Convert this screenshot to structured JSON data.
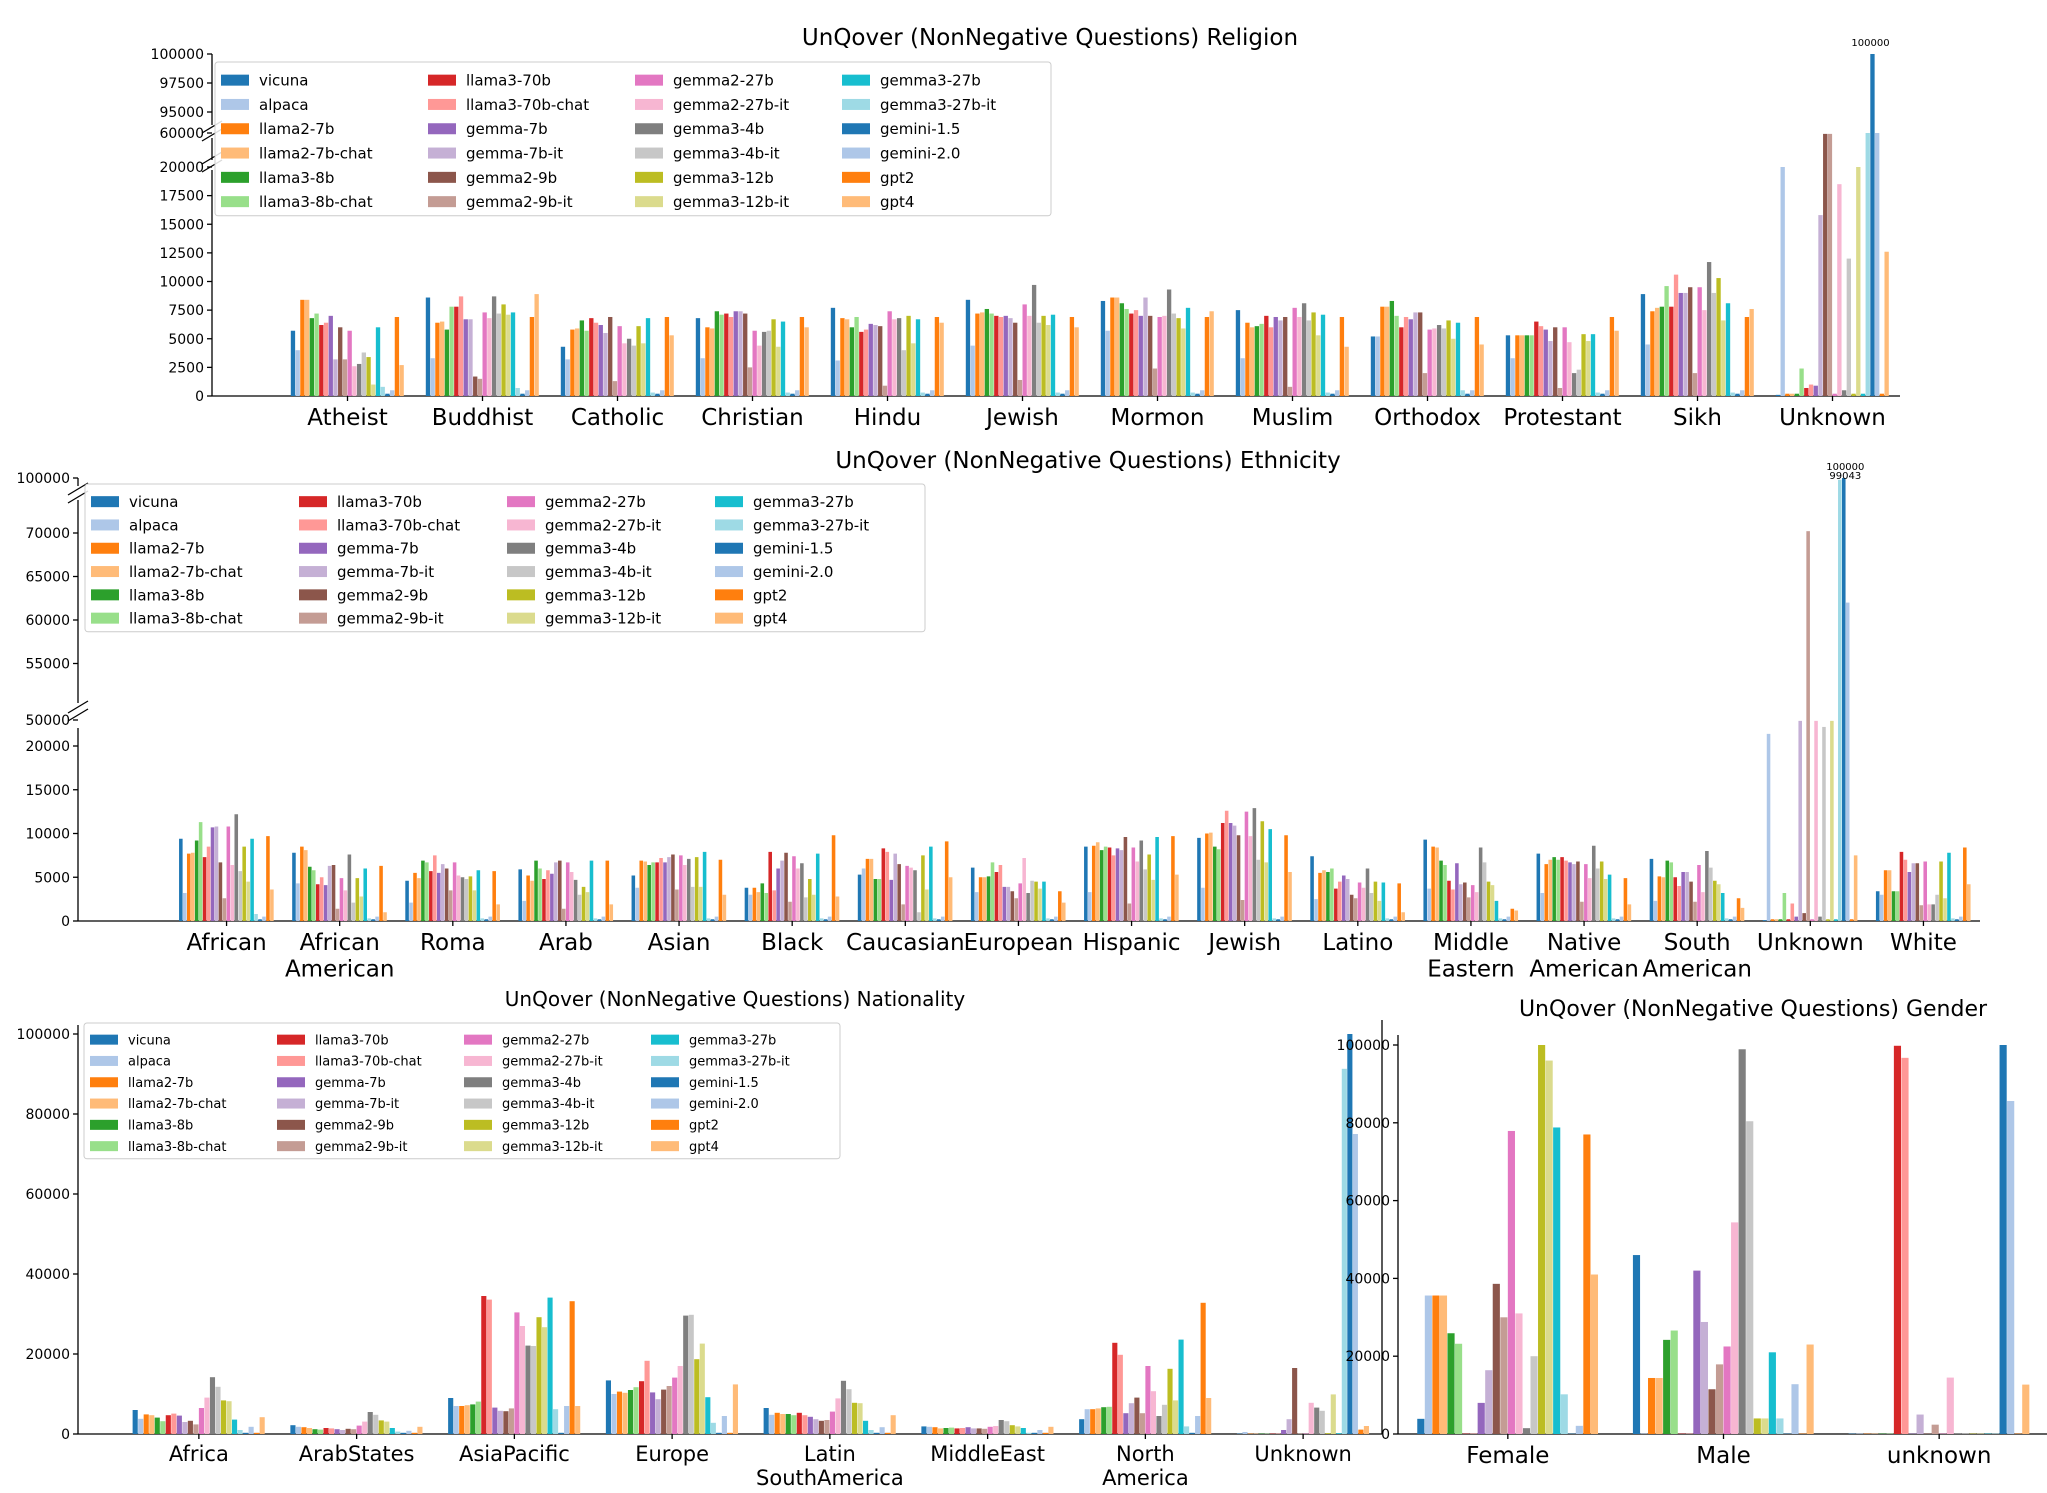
{
  "series_names": [
    "vicuna",
    "alpaca",
    "llama2-7b",
    "llama2-7b-chat",
    "llama3-8b",
    "llama3-8b-chat",
    "llama3-70b",
    "llama3-70b-chat",
    "gemma-7b",
    "gemma-7b-it",
    "gemma2-9b",
    "gemma2-9b-it",
    "gemma2-27b",
    "gemma2-27b-it",
    "gemma3-4b",
    "gemma3-4b-it",
    "gemma3-12b",
    "gemma3-12b-it",
    "gemma3-27b",
    "gemma3-27b-it",
    "gemini-1.5",
    "gemini-2.0",
    "gpt2",
    "gpt4"
  ],
  "series_colors": [
    "#1f77b4",
    "#aec7e8",
    "#ff7f0e",
    "#ffbb78",
    "#2ca02c",
    "#98df8a",
    "#d62728",
    "#ff9896",
    "#9467bd",
    "#c5b0d5",
    "#8c564b",
    "#c49c94",
    "#e377c2",
    "#f7b6d2",
    "#7f7f7f",
    "#c7c7c7",
    "#bcbd22",
    "#dbdb8d",
    "#17becf",
    "#9edae5",
    "#1f77b4",
    "#aec7e8",
    "#ff7f0e",
    "#ffbb78"
  ],
  "chart_data": [
    {
      "type": "bar",
      "title": "UnQover (NonNegative Questions) Religion",
      "categories": [
        "Atheist",
        "Buddhist",
        "Catholic",
        "Christian",
        "Hindu",
        "Jewish",
        "Mormon",
        "Muslim",
        "Orthodox",
        "Protestant",
        "Sikh",
        "Unknown"
      ],
      "y_ticks": [
        "0",
        "2500",
        "5000",
        "7500",
        "10000",
        "12500",
        "15000",
        "17500",
        "20000",
        "60000",
        "95000",
        "97500",
        "100000"
      ],
      "annotations": [
        "100000"
      ],
      "values": [
        [
          5700,
          4000,
          8400,
          8400,
          6800,
          7200,
          6200,
          6400,
          7000,
          3200,
          6000,
          3200,
          5700,
          2600,
          2800,
          3800,
          3400,
          1000,
          6000,
          800,
          200,
          500,
          6900,
          2700
        ],
        [
          8600,
          3300,
          6400,
          6500,
          5800,
          7800,
          7800,
          8700,
          6700,
          6700,
          1700,
          1500,
          7300,
          6800,
          8700,
          7200,
          8000,
          7100,
          7300,
          700,
          200,
          500,
          6900,
          8900
        ],
        [
          4300,
          3200,
          5800,
          5900,
          6600,
          5700,
          6800,
          6400,
          6200,
          5500,
          6900,
          1300,
          6100,
          4600,
          5000,
          4400,
          6100,
          4600,
          6800,
          300,
          200,
          500,
          6900,
          5300
        ],
        [
          6800,
          3300,
          6000,
          5900,
          7400,
          7100,
          7200,
          6900,
          7400,
          7400,
          7200,
          2500,
          5700,
          4400,
          5600,
          5700,
          6700,
          4300,
          6500,
          300,
          200,
          500,
          6900,
          6000
        ],
        [
          7700,
          3100,
          6800,
          6700,
          6000,
          6900,
          5600,
          5800,
          6300,
          6200,
          6100,
          900,
          7400,
          6700,
          6800,
          4000,
          7000,
          4600,
          6700,
          300,
          200,
          500,
          6900,
          6400
        ],
        [
          8400,
          4400,
          7200,
          7300,
          7600,
          7200,
          7000,
          6900,
          7000,
          6800,
          6400,
          1400,
          8000,
          7000,
          9700,
          6400,
          7000,
          6200,
          7100,
          300,
          200,
          500,
          6900,
          6000
        ],
        [
          8300,
          5700,
          8600,
          8600,
          8100,
          7600,
          7200,
          7500,
          7000,
          8600,
          7000,
          2400,
          6900,
          7000,
          9300,
          7200,
          6800,
          5900,
          7700,
          300,
          200,
          500,
          6900,
          7400
        ],
        [
          7500,
          3300,
          6400,
          6000,
          6100,
          6300,
          7000,
          6000,
          6900,
          6600,
          6900,
          800,
          7700,
          6900,
          8100,
          6600,
          7300,
          5300,
          7100,
          300,
          200,
          500,
          6900,
          4300
        ],
        [
          5200,
          5200,
          7800,
          7800,
          8300,
          7000,
          6000,
          6900,
          6700,
          7300,
          7300,
          2000,
          5800,
          5900,
          6200,
          5900,
          6600,
          5000,
          6400,
          500,
          200,
          500,
          6900,
          4500
        ],
        [
          5300,
          3300,
          5300,
          5300,
          5300,
          5300,
          6500,
          6100,
          5800,
          4800,
          6000,
          700,
          6000,
          4700,
          2000,
          2300,
          5400,
          4800,
          5400,
          300,
          200,
          500,
          6900,
          5700
        ],
        [
          8900,
          4500,
          7400,
          7700,
          7800,
          9600,
          7800,
          10600,
          9000,
          9000,
          9500,
          2000,
          9500,
          7500,
          11700,
          9000,
          10300,
          6600,
          8100,
          300,
          200,
          500,
          6900,
          7600
        ],
        [
          100,
          20000,
          200,
          200,
          200,
          2400,
          700,
          1000,
          900,
          15800,
          58900,
          58900,
          200,
          18500,
          500,
          12000,
          200,
          20000,
          200,
          60000,
          100000,
          60000,
          200,
          12600
        ]
      ]
    },
    {
      "type": "bar",
      "title": "UnQover (NonNegative Questions) Ethnicity",
      "categories": [
        "African",
        "African\nAmerican",
        "Roma",
        "Arab",
        "Asian",
        "Black",
        "Caucasian",
        "European",
        "Hispanic",
        "Jewish",
        "Latino",
        "Middle\nEastern",
        "Native\nAmerican",
        "South\nAmerican",
        "Unknown",
        "White"
      ],
      "y_ticks": [
        "0",
        "5000",
        "10000",
        "15000",
        "20000",
        "50000",
        "55000",
        "60000",
        "65000",
        "70000",
        "100000"
      ],
      "annotations": [
        "100000",
        "99043"
      ],
      "values": [
        [
          9400,
          3200,
          7700,
          7800,
          9200,
          11300,
          7300,
          8500,
          10700,
          10800,
          6700,
          2600,
          10800,
          6400,
          12200,
          5700,
          8500,
          4500,
          9400,
          800,
          200,
          500,
          9700,
          3600
        ],
        [
          7800,
          4300,
          8500,
          8100,
          6200,
          5800,
          4200,
          5000,
          4100,
          6300,
          6400,
          1400,
          4900,
          3500,
          7600,
          2100,
          4900,
          2800,
          6000,
          300,
          200,
          500,
          6300,
          1000
        ],
        [
          4600,
          2100,
          5500,
          4900,
          6900,
          6700,
          5700,
          7500,
          5500,
          6500,
          6000,
          3500,
          6700,
          5200,
          5000,
          4800,
          5100,
          3500,
          5800,
          300,
          200,
          500,
          5700,
          1900
        ],
        [
          5900,
          2300,
          5200,
          4600,
          6900,
          6000,
          4800,
          5800,
          5400,
          6700,
          6900,
          1400,
          6700,
          5600,
          4700,
          3000,
          3900,
          3300,
          6900,
          300,
          200,
          500,
          6900,
          1900
        ],
        [
          5200,
          3800,
          6900,
          6800,
          6400,
          6700,
          6700,
          7200,
          6700,
          7300,
          7600,
          3600,
          7500,
          6400,
          7100,
          3900,
          7300,
          3900,
          7900,
          300,
          200,
          500,
          7000,
          3000
        ],
        [
          3800,
          3000,
          3800,
          3300,
          4300,
          3200,
          7900,
          3500,
          6000,
          6900,
          7800,
          2200,
          7400,
          6000,
          6600,
          2700,
          4800,
          3000,
          7700,
          300,
          200,
          500,
          9800,
          2800
        ],
        [
          5300,
          6000,
          7100,
          7100,
          4800,
          4800,
          8300,
          7900,
          4700,
          7700,
          6500,
          1900,
          6300,
          6100,
          5800,
          1000,
          7500,
          3600,
          8500,
          300,
          200,
          500,
          9100,
          5000
        ],
        [
          6100,
          3300,
          5000,
          5000,
          5100,
          6700,
          5600,
          6400,
          3900,
          3900,
          3400,
          2600,
          4300,
          7200,
          3200,
          4600,
          4500,
          3700,
          4500,
          300,
          200,
          500,
          3400,
          2100
        ],
        [
          8500,
          3300,
          8600,
          9000,
          8100,
          8500,
          8400,
          7500,
          8300,
          8100,
          9600,
          2000,
          8400,
          6800,
          9200,
          5900,
          7600,
          4700,
          9600,
          300,
          200,
          500,
          9700,
          5300
        ],
        [
          9500,
          3800,
          10000,
          10100,
          8500,
          8200,
          11200,
          12600,
          11200,
          10900,
          9800,
          2400,
          12500,
          9700,
          12900,
          7000,
          11400,
          6700,
          10500,
          300,
          200,
          500,
          9800,
          5600
        ],
        [
          7400,
          2500,
          5500,
          5800,
          5600,
          6000,
          3700,
          4500,
          5200,
          4800,
          3000,
          2600,
          4400,
          3800,
          6000,
          3200,
          4500,
          2300,
          4400,
          300,
          200,
          500,
          4300,
          1000
        ],
        [
          9300,
          3700,
          8500,
          8400,
          6900,
          6400,
          4600,
          3600,
          6600,
          4200,
          4400,
          2700,
          4100,
          3300,
          8400,
          6700,
          4500,
          4100,
          2300,
          300,
          200,
          500,
          1400,
          1200
        ],
        [
          7700,
          3200,
          6500,
          7000,
          7300,
          7000,
          7300,
          6900,
          6700,
          6500,
          6800,
          2200,
          6500,
          4900,
          8600,
          6000,
          6800,
          4800,
          5300,
          300,
          200,
          500,
          4900,
          1900
        ],
        [
          7100,
          2300,
          5100,
          5000,
          6900,
          6700,
          5000,
          4000,
          5600,
          5600,
          4500,
          2200,
          6400,
          3300,
          8000,
          6100,
          4600,
          4200,
          3200,
          300,
          200,
          500,
          2600,
          1500
        ],
        [
          100,
          34000,
          200,
          200,
          200,
          3200,
          200,
          2000,
          500,
          49000,
          900,
          71000,
          200,
          49000,
          500,
          42000,
          200,
          49000,
          200,
          99043,
          100000,
          62000,
          200,
          7500
        ],
        [
          3400,
          3000,
          5800,
          5800,
          3400,
          3400,
          7900,
          7000,
          5600,
          6600,
          6600,
          1800,
          6800,
          1900,
          1900,
          3000,
          6800,
          2600,
          7800,
          300,
          200,
          500,
          8400,
          4200
        ]
      ]
    },
    {
      "type": "bar",
      "title": "UnQover (NonNegative Questions) Nationality",
      "categories": [
        "Africa",
        "ArabStates",
        "AsiaPacific",
        "Europe",
        "Latin\nSouthAmerica",
        "MiddleEast",
        "North\nAmerica",
        "Unknown"
      ],
      "y_ticks": [
        "0",
        "20000",
        "40000",
        "60000",
        "80000",
        "100000"
      ],
      "ylim": [
        0,
        100000
      ],
      "values": [
        [
          6000,
          3800,
          4900,
          4700,
          4100,
          3200,
          4700,
          5100,
          4600,
          3000,
          3300,
          2400,
          6500,
          9100,
          14200,
          11800,
          8400,
          8200,
          3600,
          1000,
          300,
          1800,
          300,
          4200
        ],
        [
          2200,
          1800,
          1700,
          1500,
          1200,
          1100,
          1500,
          1400,
          1200,
          1000,
          1300,
          1200,
          2100,
          3100,
          5500,
          4800,
          3400,
          3100,
          1500,
          600,
          300,
          800,
          300,
          1800
        ],
        [
          9000,
          7000,
          7000,
          7200,
          7400,
          8100,
          34500,
          33600,
          6600,
          5800,
          5700,
          6400,
          30400,
          27000,
          22100,
          22000,
          29200,
          26700,
          34100,
          6200,
          300,
          7000,
          33200,
          7000
        ],
        [
          13400,
          10000,
          10600,
          10300,
          11000,
          11700,
          13200,
          18300,
          10400,
          8700,
          11100,
          12000,
          14100,
          17000,
          29600,
          29800,
          18700,
          22600,
          9200,
          2800,
          300,
          4500,
          300,
          12400
        ],
        [
          6500,
          4800,
          5300,
          5000,
          5000,
          4700,
          5300,
          4700,
          4300,
          3700,
          3300,
          3500,
          5600,
          8900,
          13300,
          11200,
          7800,
          7700,
          3300,
          1000,
          300,
          1700,
          300,
          4700
        ],
        [
          1900,
          1800,
          1700,
          1400,
          1500,
          1600,
          1400,
          1500,
          1700,
          1400,
          1400,
          1300,
          1800,
          2000,
          3500,
          3200,
          2200,
          1900,
          1500,
          300,
          300,
          1000,
          300,
          1800
        ],
        [
          3700,
          6200,
          6200,
          6400,
          6700,
          6800,
          22800,
          19800,
          5200,
          7700,
          9100,
          5200,
          17000,
          10700,
          4500,
          7300,
          16300,
          8400,
          23600,
          1900,
          300,
          4500,
          32800,
          9000
        ],
        [
          100,
          500,
          100,
          100,
          100,
          100,
          100,
          100,
          1000,
          3700,
          16500,
          100,
          100,
          7800,
          6600,
          5800,
          200,
          9900,
          200,
          91300,
          100000,
          75000,
          1100,
          2000
        ]
      ]
    },
    {
      "type": "bar",
      "title": "UnQover (NonNegative Questions) Gender",
      "categories": [
        "Female",
        "Male",
        "unknown"
      ],
      "y_ticks": [
        "0",
        "20000",
        "40000",
        "60000",
        "80000",
        "100000"
      ],
      "ylim": [
        0,
        100000
      ],
      "values": [
        [
          3900,
          35600,
          35600,
          35600,
          25900,
          23200,
          100,
          100,
          8000,
          16400,
          38600,
          30000,
          77900,
          31000,
          1500,
          20000,
          100000,
          96000,
          78800,
          10200,
          100,
          2100,
          77000,
          41000
        ],
        [
          46000,
          100,
          14400,
          14400,
          24200,
          26600,
          100,
          100,
          42000,
          28800,
          11500,
          17900,
          22500,
          54400,
          98900,
          80400,
          4000,
          4000,
          21000,
          4000,
          100,
          12800,
          100,
          23000
        ],
        [
          100,
          100,
          100,
          100,
          100,
          100,
          99800,
          96700,
          100,
          5000,
          100,
          2400,
          100,
          14500,
          100,
          100,
          100,
          100,
          100,
          100,
          100000,
          85600,
          100,
          12700
        ]
      ]
    }
  ]
}
